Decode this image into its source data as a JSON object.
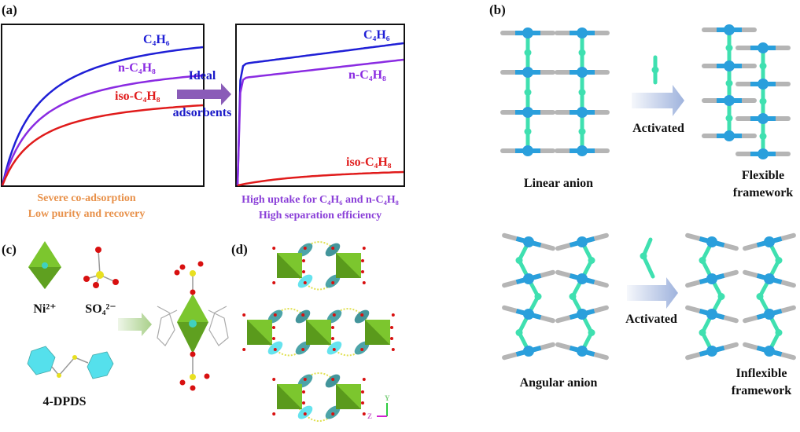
{
  "panel_a": {
    "label": "(a)",
    "left_plot": {
      "series": [
        {
          "name": "C₄H₆",
          "color": "#1f1fd6"
        },
        {
          "name": "n-C₄H₈",
          "color": "#8a2be2"
        },
        {
          "name": "iso-C₄H₈",
          "color": "#e01b1b"
        }
      ],
      "caption_line1": "Severe co-adsorption",
      "caption_line2": "Low purity and recovery",
      "caption_color": "#e8914a"
    },
    "arrow": {
      "line1": "Ideal",
      "line2": "adsorbents",
      "text_color": "#1a1ac8",
      "arrow_color": "#8a5cb8"
    },
    "right_plot": {
      "series": [
        {
          "name": "C₄H₆",
          "color": "#1f1fd6"
        },
        {
          "name": "n-C₄H₈",
          "color": "#8a2be2"
        },
        {
          "name": "iso-C₄H₈",
          "color": "#e01b1b"
        }
      ],
      "caption_line1": "High uptake for C₄H₆ and n-C₄H₈",
      "caption_line2": "High separation efficiency",
      "caption_color": "#8a3fd8"
    }
  },
  "panel_b": {
    "label": "(b)",
    "top": {
      "left_label": "Linear anion",
      "arrow_label": "Activated",
      "right_label_line1": "Flexible",
      "right_label_line2": "framework"
    },
    "bottom": {
      "left_label": "Angular anion",
      "arrow_label": "Activated",
      "right_label_line1": "Inflexible",
      "right_label_line2": "framework"
    },
    "colors": {
      "metal": "#2a9fdc",
      "linker": "#3fe0b0",
      "ligand": "#b5b5b5",
      "arrow": "#9fb3dd"
    }
  },
  "panel_c": {
    "label": "(c)",
    "metal_label": "Ni²⁺",
    "anion_label": "SO₄²⁻",
    "ligand_label": "4-DPDS",
    "colors": {
      "octahedron": "#7cc62e",
      "oxygen": "#d81010",
      "sulfur": "#e8e020",
      "ring": "#55e0ec"
    }
  },
  "panel_d": {
    "label": "(d)",
    "axis_y": "Y",
    "axis_z": "Z"
  }
}
